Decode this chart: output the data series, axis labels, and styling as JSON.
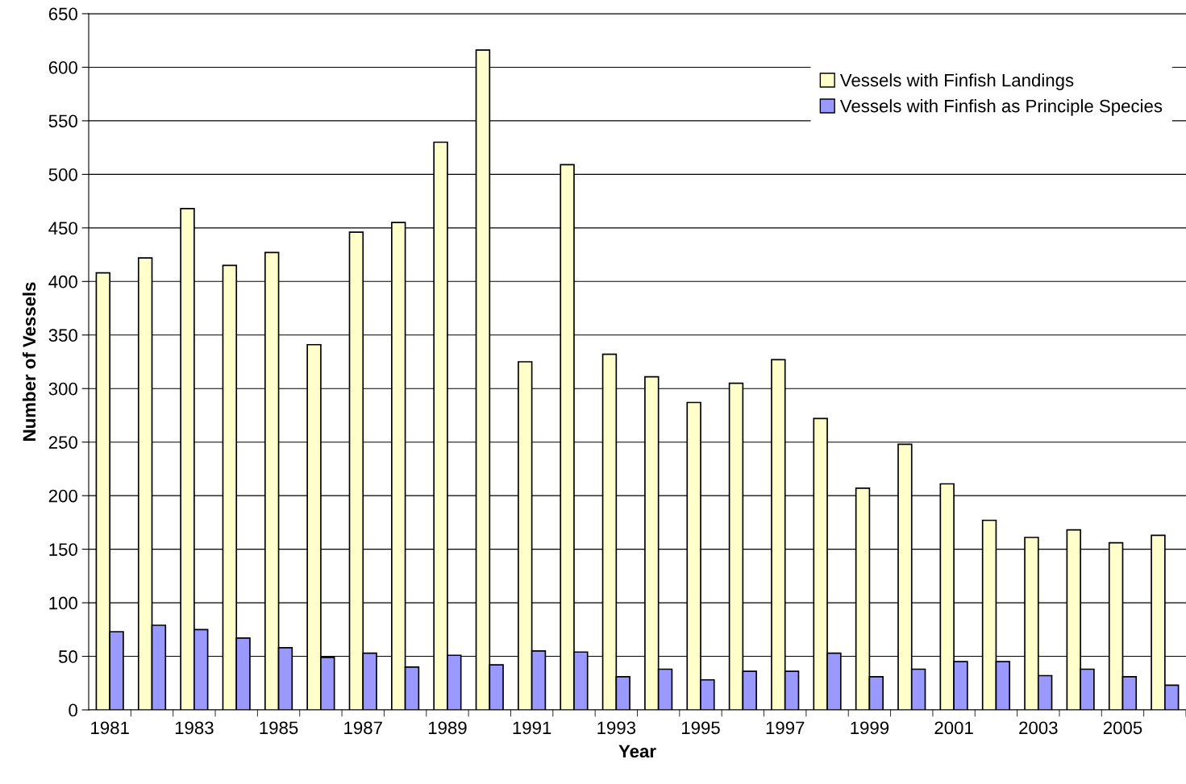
{
  "chart_data": {
    "type": "bar",
    "xlabel": "Year",
    "ylabel": "Number of Vessels",
    "categories": [
      "1981",
      null,
      "1983",
      null,
      "1985",
      null,
      "1987",
      null,
      "1989",
      null,
      "1991",
      null,
      "1993",
      null,
      "1995",
      null,
      "1997",
      null,
      "1999",
      null,
      "2001",
      null,
      "2003",
      null,
      "2005",
      null
    ],
    "series": [
      {
        "name": "Vessels with Finfish Landings",
        "color": "#ffffcc",
        "values": [
          408,
          422,
          468,
          415,
          427,
          341,
          446,
          455,
          530,
          616,
          325,
          509,
          332,
          311,
          287,
          305,
          327,
          272,
          207,
          248,
          211,
          177,
          161,
          168,
          156,
          163
        ]
      },
      {
        "name": "Vessels with Finfish as Principle Species",
        "color": "#9999ff",
        "values": [
          73,
          79,
          75,
          67,
          58,
          49,
          53,
          40,
          51,
          42,
          55,
          54,
          31,
          38,
          28,
          36,
          36,
          53,
          31,
          38,
          45,
          45,
          32,
          38,
          31,
          23
        ]
      }
    ],
    "ylim": [
      0,
      650
    ],
    "yticks": [
      0,
      50,
      100,
      150,
      200,
      250,
      300,
      350,
      400,
      450,
      500,
      550,
      600,
      650
    ],
    "grid": "y",
    "legend": "top right"
  }
}
